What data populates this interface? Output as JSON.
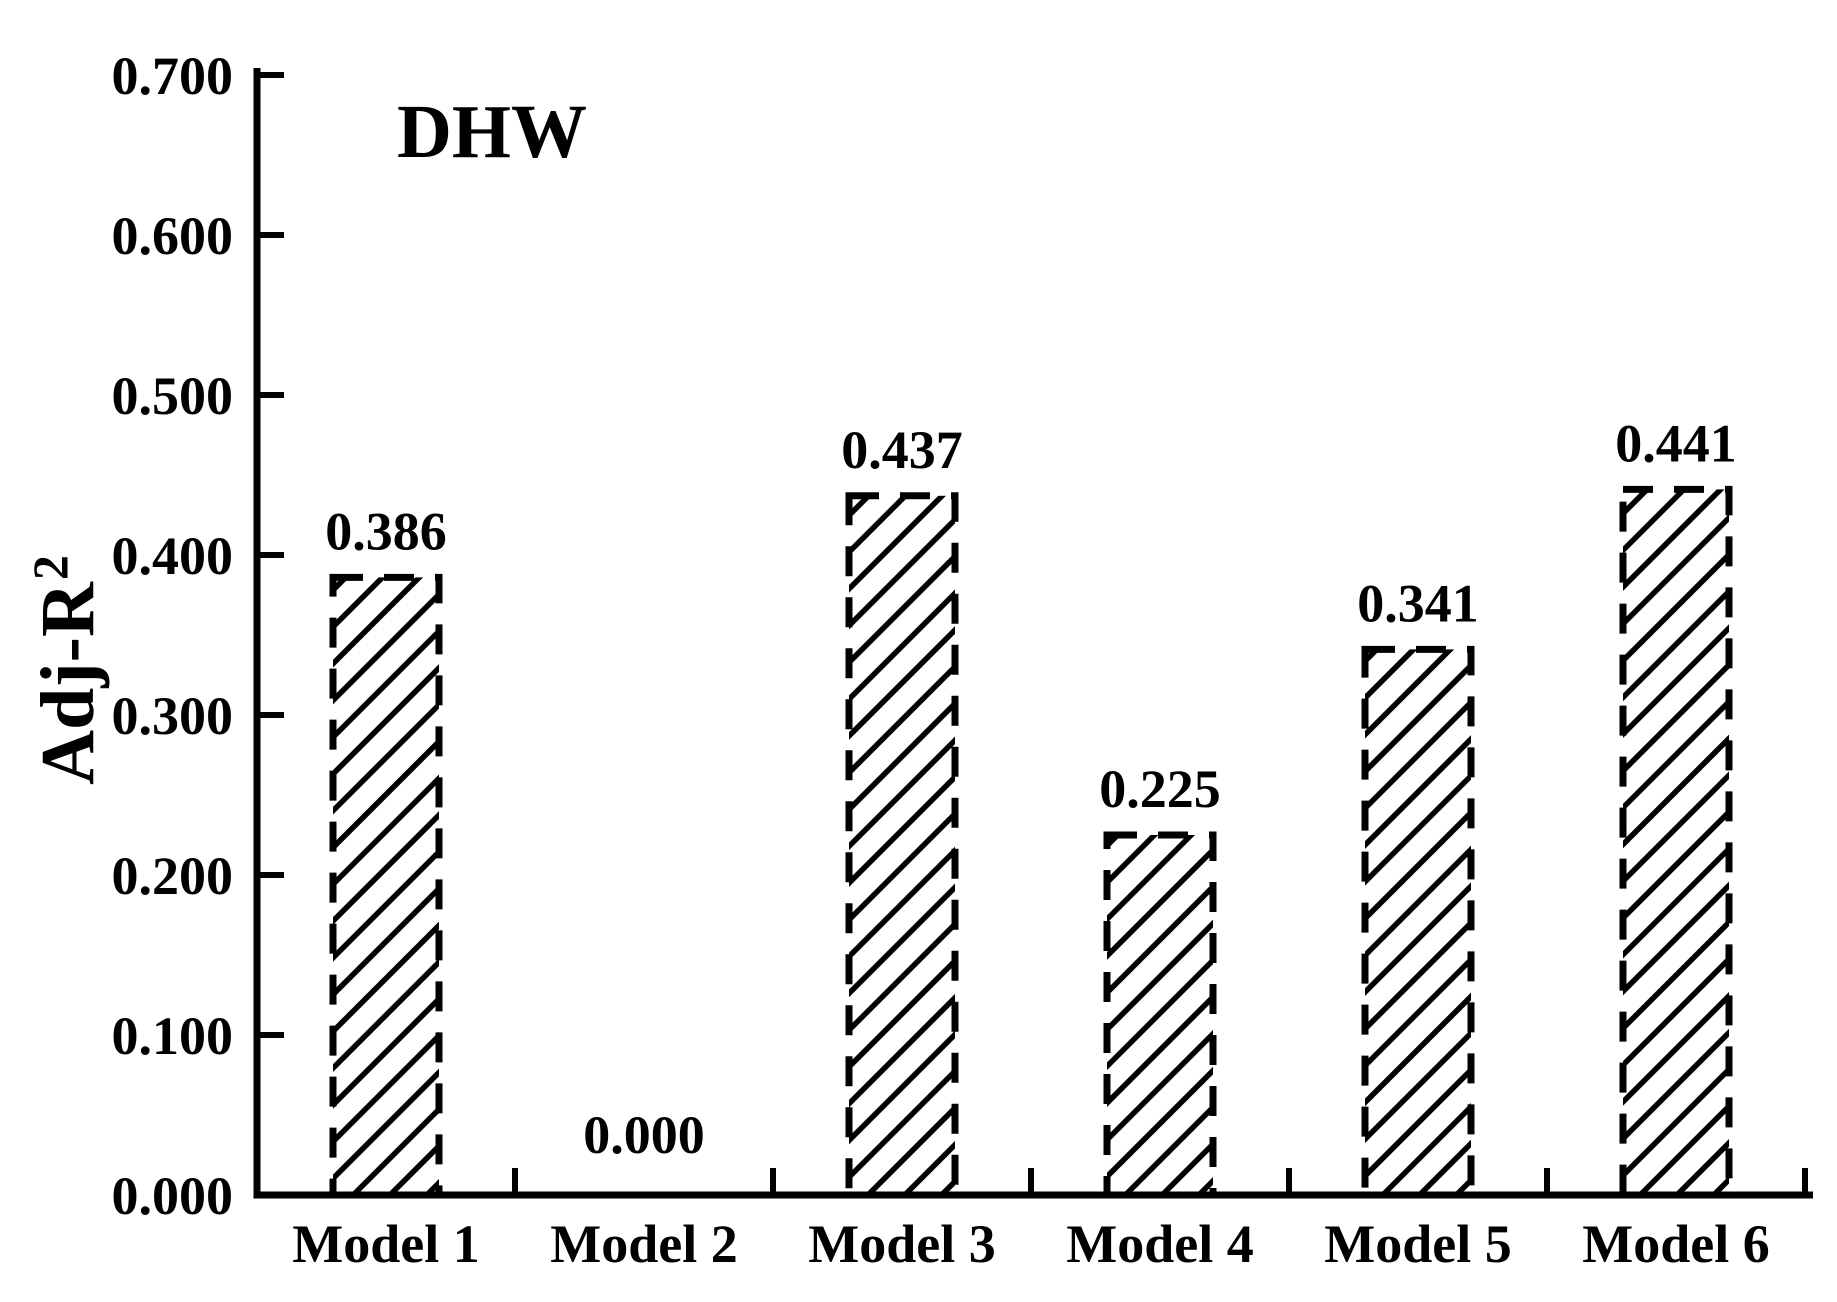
{
  "page": {
    "background_color": "#ffffff",
    "ink_color": "#000000"
  },
  "chart_data": {
    "type": "bar",
    "title": "DHW",
    "ylabel": "Adj-R²",
    "ylabel_base": "Adj-R",
    "ylabel_superscript": "2",
    "xlabel": "",
    "categories": [
      "Model 1",
      "Model 2",
      "Model 3",
      "Model 4",
      "Model 5",
      "Model 6"
    ],
    "values": [
      0.386,
      0.0,
      0.437,
      0.225,
      0.341,
      0.441
    ],
    "value_labels": [
      "0.386",
      "0.000",
      "0.437",
      "0.225",
      "0.341",
      "0.441"
    ],
    "ylim": [
      0.0,
      0.7
    ],
    "ytick_step": 0.1,
    "ytick_values": [
      0.0,
      0.1,
      0.2,
      0.3,
      0.4,
      0.5,
      0.6,
      0.7
    ],
    "ytick_labels": [
      "0.000",
      "0.100",
      "0.200",
      "0.300",
      "0.400",
      "0.500",
      "0.600",
      "0.700"
    ],
    "grid": false,
    "legend": false,
    "tick_direction": "in",
    "xtick_placement": "category-boundaries",
    "bar_style": {
      "fill": "#ffffff",
      "hatch": "diagonal-forward-slash",
      "outline": "dashed",
      "color": "#000000"
    }
  }
}
